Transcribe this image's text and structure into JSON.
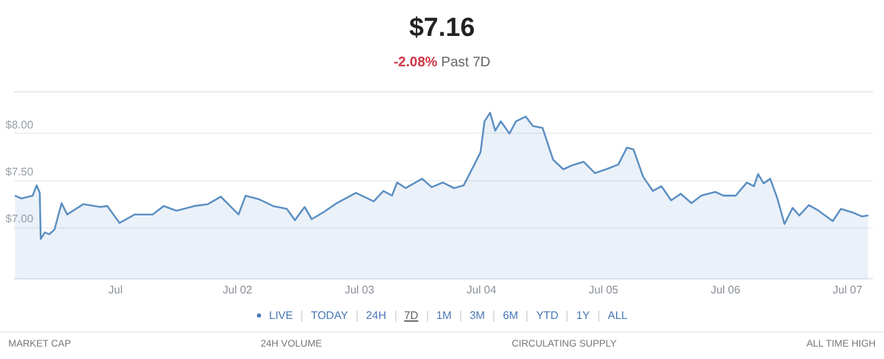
{
  "chart_data": {
    "type": "area",
    "title": "$7.16",
    "subtitle": "-2.08% Past 7D",
    "x": [
      "--06-30T04:12",
      "--06-30T05:30",
      "--06-30T07:42",
      "--06-30T08:30",
      "--06-30T09:06",
      "--06-30T09:18",
      "--06-30T10:06",
      "--06-30T11:00",
      "--06-30T12:00",
      "--06-30T13:24",
      "--06-30T14:30",
      "--06-30T17:42",
      "--06-30T21:00",
      "--06-30T22:24",
      "--07-01T00:48",
      "--07-01T03:48",
      "--07-01T07:18",
      "--07-01T09:30",
      "--07-01T12:00",
      "--07-01T15:30",
      "--07-01T18:12",
      "--07-01T20:42",
      "--07-02T00:12",
      "--07-02T01:36",
      "--07-02T04:18",
      "--07-02T07:00",
      "--07-02T09:42",
      "--07-02T11:18",
      "--07-02T13:12",
      "--07-02T14:36",
      "--07-02T16:48",
      "--07-02T19:30",
      "--07-02T23:18",
      "--07-03T02:48",
      "--07-03T04:42",
      "--07-03T06:24",
      "--07-03T07:24",
      "--07-03T09:06",
      "--07-03T12:18",
      "--07-03T14:12",
      "--07-03T16:24",
      "--07-03T18:36",
      "--07-03T20:30",
      "--07-03T22:24",
      "--07-03T23:48",
      "--07-04T00:36",
      "--07-04T01:42",
      "--07-04T02:42",
      "--07-04T03:48",
      "--07-04T05:30",
      "--07-04T06:48",
      "--07-04T08:42",
      "--07-04T10:06",
      "--07-04T12:00",
      "--07-04T14:06",
      "--07-04T16:06",
      "--07-04T17:42",
      "--07-04T20:06",
      "--07-04T22:18",
      "--07-05T00:30",
      "--07-05T02:54",
      "--07-05T04:36",
      "--07-05T05:54",
      "--07-05T07:48",
      "--07-05T09:42",
      "--07-05T11:24",
      "--07-05T13:18",
      "--07-05T15:12",
      "--07-05T17:18",
      "--07-05T19:12",
      "--07-05T22:00",
      "--07-05T23:36",
      "--07-06T02:00",
      "--07-06T04:12",
      "--07-06T05:36",
      "--07-06T06:24",
      "--07-06T07:30",
      "--07-06T08:48",
      "--07-06T10:12",
      "--07-06T11:36",
      "--07-06T13:12",
      "--07-06T14:30",
      "--07-06T16:24",
      "--07-06T18:18",
      "--07-06T21:06",
      "--07-06T22:42",
      "--07-07T01:06",
      "--07-07T02:48",
      "--07-07T04:06"
    ],
    "series": [
      {
        "color": "#5b8fc2",
        "values": [
          7.34,
          7.31,
          7.34,
          7.45,
          7.37,
          6.88,
          6.95,
          6.93,
          6.98,
          7.26,
          7.14,
          7.25,
          7.22,
          7.23,
          7.05,
          7.14,
          7.14,
          7.23,
          7.18,
          7.23,
          7.25,
          7.33,
          7.14,
          7.34,
          7.3,
          7.23,
          7.2,
          7.08,
          7.22,
          7.09,
          7.16,
          7.26,
          7.37,
          7.28,
          7.39,
          7.34,
          7.48,
          7.42,
          7.52,
          7.43,
          7.48,
          7.42,
          7.45,
          7.65,
          7.8,
          8.13,
          8.22,
          8.03,
          8.13,
          8.0,
          8.13,
          8.18,
          8.08,
          8.06,
          7.72,
          7.62,
          7.66,
          7.7,
          7.58,
          7.62,
          7.67,
          7.85,
          7.83,
          7.54,
          7.39,
          7.44,
          7.29,
          7.36,
          7.26,
          7.34,
          7.38,
          7.34,
          7.34,
          7.48,
          7.44,
          7.57,
          7.47,
          7.52,
          7.31,
          7.04,
          7.21,
          7.13,
          7.24,
          7.18,
          7.07,
          7.2,
          7.16,
          7.12,
          7.13
        ]
      }
    ],
    "xlim": [
      "--06-30T04:00",
      "--07-07T05:00"
    ],
    "xticks": [
      {
        "value": "--07-01",
        "label": "Jul"
      },
      {
        "value": "--07-02",
        "label": "Jul 02"
      },
      {
        "value": "--07-03",
        "label": "Jul 03"
      },
      {
        "value": "--07-04",
        "label": "Jul 04"
      },
      {
        "value": "--07-05",
        "label": "Jul 05"
      },
      {
        "value": "--07-06",
        "label": "Jul 06"
      },
      {
        "value": "--07-07",
        "label": "Jul 07"
      }
    ],
    "ylim": [
      6.45,
      8.45
    ],
    "yticks": [
      {
        "value": 7,
        "label": "$7.00"
      },
      {
        "value": 7.5,
        "label": "$7.50"
      },
      {
        "value": 8,
        "label": "$8.00"
      }
    ],
    "grid": "y",
    "legend": false,
    "marker": "none",
    "line_style": "solid",
    "annotations": [
      "LIVE",
      "TODAY",
      "24H",
      "7D",
      "1M",
      "3M",
      "6M",
      "YTD",
      "1Y",
      "ALL",
      "MARKET CAP",
      "24H VOLUME",
      "CIRCULATING SUPPLY",
      "ALL TIME HIGH"
    ]
  }
}
